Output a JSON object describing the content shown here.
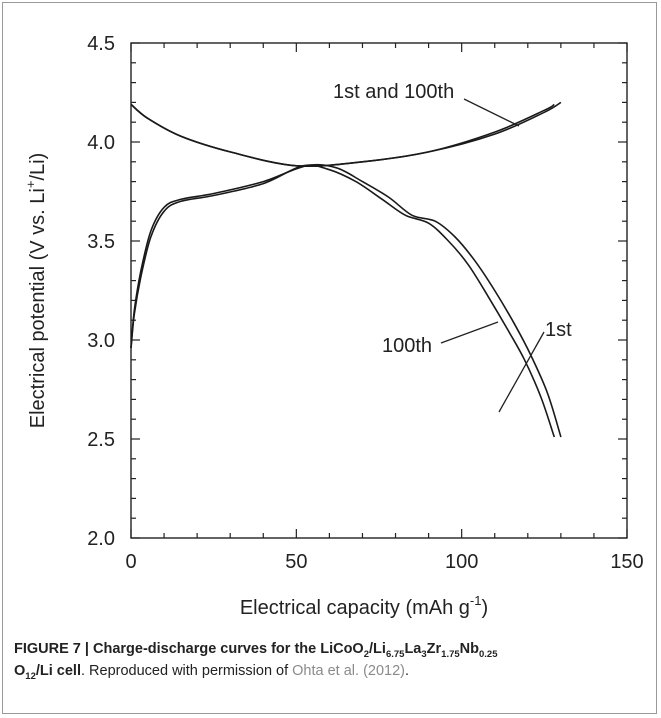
{
  "chart_data": {
    "type": "line",
    "xlabel": "Electrical capacity (mAh g",
    "xlabel_sup": "-1",
    "xlabel_end": ")",
    "ylabel": "Electrical potential (V vs. Li",
    "ylabel_sup": "+",
    "ylabel_end": "/Li)",
    "xlim": [
      0,
      150
    ],
    "ylim": [
      2.0,
      4.5
    ],
    "x_ticks": [
      "0",
      "50",
      "100",
      "150"
    ],
    "y_ticks": [
      "2.0",
      "2.5",
      "3.0",
      "3.5",
      "4.0",
      "4.5"
    ],
    "grid": false,
    "annotations": {
      "charge": "1st and 100th",
      "first": "1st",
      "hundredth": "100th"
    },
    "series": [
      {
        "id": "charge_1st",
        "x": [
          0,
          5,
          15,
          30,
          50,
          70,
          90,
          110,
          125,
          130
        ],
        "y": [
          4.19,
          4.12,
          4.03,
          3.95,
          3.88,
          3.9,
          3.95,
          4.04,
          4.15,
          4.2
        ]
      },
      {
        "id": "charge_100th",
        "x": [
          0,
          5,
          15,
          30,
          50,
          70,
          90,
          110,
          125,
          128
        ],
        "y": [
          4.19,
          4.12,
          4.03,
          3.95,
          3.88,
          3.9,
          3.95,
          4.05,
          4.16,
          4.19
        ]
      },
      {
        "id": "discharge_1st",
        "x": [
          0,
          1,
          3,
          6,
          10,
          15,
          25,
          40,
          53,
          62,
          70,
          78,
          85,
          92,
          98,
          104,
          110,
          116,
          121,
          126,
          130
        ],
        "y": [
          2.96,
          3.15,
          3.35,
          3.55,
          3.67,
          3.71,
          3.74,
          3.8,
          3.88,
          3.87,
          3.8,
          3.72,
          3.63,
          3.6,
          3.52,
          3.4,
          3.25,
          3.08,
          2.92,
          2.73,
          2.51
        ]
      },
      {
        "id": "discharge_100th",
        "x": [
          0,
          1,
          3,
          6,
          10,
          15,
          25,
          40,
          52,
          60,
          68,
          76,
          83,
          90,
          96,
          102,
          108,
          114,
          119,
          124,
          128
        ],
        "y": [
          2.96,
          3.13,
          3.32,
          3.52,
          3.65,
          3.7,
          3.73,
          3.79,
          3.88,
          3.86,
          3.8,
          3.71,
          3.63,
          3.59,
          3.5,
          3.38,
          3.22,
          3.05,
          2.9,
          2.71,
          2.51
        ]
      }
    ]
  },
  "caption": {
    "figure_label": "FIGURE 7 | Charge-discharge curves for the LiCoO",
    "sub1": "2",
    "t1": "/Li",
    "sub2": "6.75",
    "t2": "La",
    "sub3": "3",
    "t3": "Zr",
    "sub4": "1.75",
    "t4": "Nb",
    "sub5": "0.25",
    "t5": "O",
    "sub6": "12",
    "t6": "/Li cell",
    "rest": ". Reproduced with permission of ",
    "citation": "Ohta et al. (2012)",
    "end": "."
  }
}
